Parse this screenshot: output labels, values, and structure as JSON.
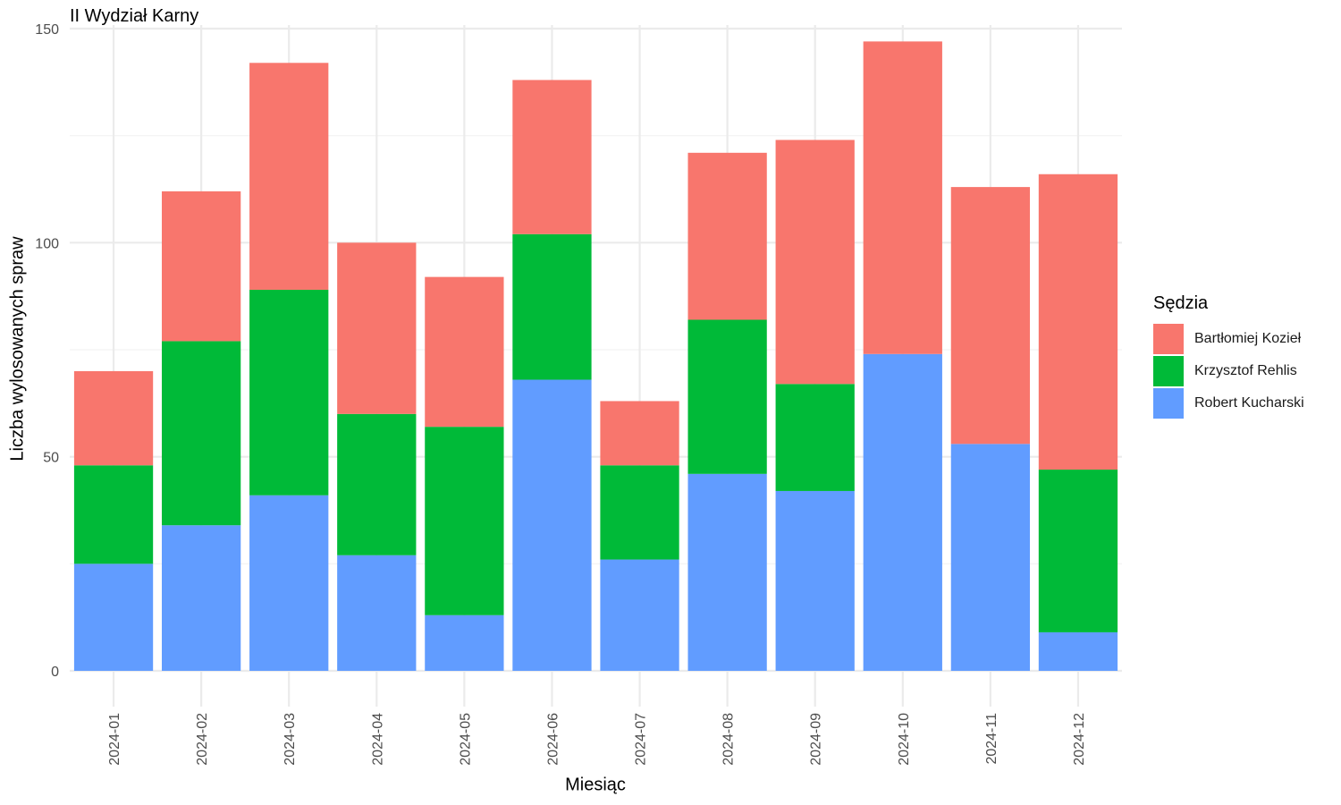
{
  "chart_data": {
    "type": "bar",
    "stacked": true,
    "title": "II Wydział Karny",
    "xlabel": "Miesiąc",
    "ylabel": "Liczba wylosowanych spraw",
    "ylim": [
      -5,
      150
    ],
    "yticks": [
      0,
      50,
      100,
      150
    ],
    "grid": true,
    "legend_position": "right",
    "legend_title": "Sędzia",
    "categories": [
      "2024-01",
      "2024-02",
      "2024-03",
      "2024-04",
      "2024-05",
      "2024-06",
      "2024-07",
      "2024-08",
      "2024-09",
      "2024-10",
      "2024-11",
      "2024-12"
    ],
    "series": [
      {
        "name": "Robert Kucharski",
        "color": "#619CFF",
        "values": [
          25,
          34,
          41,
          27,
          13,
          68,
          26,
          46,
          42,
          74,
          53,
          9
        ]
      },
      {
        "name": "Krzysztof Rehlis",
        "color": "#00BA38",
        "values": [
          23,
          43,
          48,
          33,
          44,
          34,
          22,
          36,
          25,
          0,
          0,
          38
        ]
      },
      {
        "name": "Bartłomiej Kozieł",
        "color": "#F8766D",
        "values": [
          22,
          35,
          53,
          40,
          35,
          36,
          15,
          39,
          57,
          73,
          60,
          69
        ]
      }
    ]
  }
}
